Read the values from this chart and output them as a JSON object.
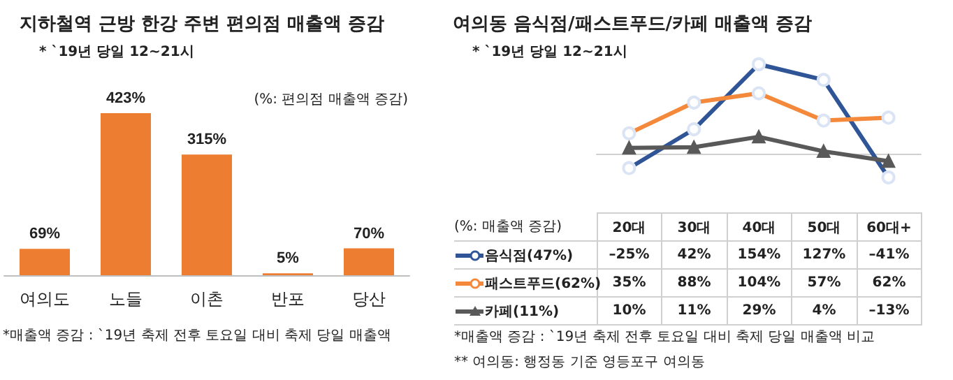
{
  "chart_data": [
    {
      "type": "bar",
      "title": "지하철역 근방 한강 주변 편의점 매출액 증감",
      "subtitle": "* `19년 당일 12~21시",
      "categories": [
        "여의도",
        "노들",
        "이촌",
        "반포",
        "당산"
      ],
      "values": [
        69,
        423,
        315,
        5,
        70
      ],
      "value_labels": [
        "69%",
        "423%",
        "315%",
        "5%",
        "70%"
      ],
      "color": "#ed7d31",
      "tick_labels": "x",
      "annotations": [
        "(%: 편의점 매출액 증감)",
        "*매출액 증감 : `19년 축제 전후 토요일 대비 축제 당일 매출액"
      ]
    },
    {
      "type": "line",
      "title": "여의동 음식점/패스트푸드/카페 매출액 증감",
      "subtitle": "* `19년 당일 12~21시",
      "categories": [
        "20대",
        "30대",
        "40대",
        "50대",
        "60대+"
      ],
      "legend": "bottom",
      "tick_labels": false,
      "series": [
        {
          "name": "음식점(47%)",
          "color": "#2f5597",
          "marker": "circle",
          "values": [
            -25,
            42,
            154,
            127,
            -41
          ],
          "value_labels": [
            "–25%",
            "42%",
            "154%",
            "127%",
            "–41%"
          ]
        },
        {
          "name": "패스트푸드(62%)",
          "color": "#f4883b",
          "marker": "circle",
          "values": [
            35,
            88,
            104,
            57,
            62
          ],
          "value_labels": [
            "35%",
            "88%",
            "104%",
            "57%",
            "62%"
          ]
        },
        {
          "name": "카페(11%)",
          "color": "#595959",
          "marker": "triangle",
          "values": [
            10,
            11,
            29,
            4,
            -13
          ],
          "value_labels": [
            "10%",
            "11%",
            "29%",
            "4%",
            "–13%"
          ]
        }
      ],
      "annotations": [
        "(%: 매출액 증감)",
        "*매출액 증감 : `19년 축제 전후 토요일 대비 축제 당일 매출액 비교",
        "** 여의동: 행정동 기준 영등포구 여의동"
      ]
    }
  ]
}
